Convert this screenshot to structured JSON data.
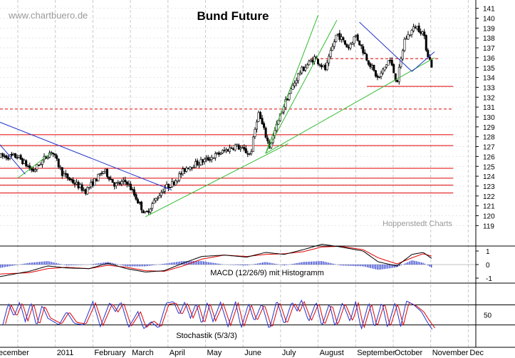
{
  "header": {
    "watermark": "www.chartbuero.de",
    "title": "Bund Future"
  },
  "credit": "Hoppenstedt Charts",
  "colors": {
    "background": "#ffffff",
    "grid": "#c8c8c8",
    "candle": "#000000",
    "support_resistance": "#e00000",
    "trend_green": "#33bb33",
    "trend_blue": "#2233cc",
    "macd_line": "#000000",
    "signal_line": "#e00000",
    "histogram": "#2233cc",
    "stoch_k": "#2233cc",
    "stoch_d": "#e00000"
  },
  "chart_data": [
    {
      "type": "candlestick",
      "title": "Bund Future",
      "ylim": [
        119,
        141
      ],
      "y_ticks": [
        119,
        120,
        121,
        122,
        123,
        124,
        125,
        126,
        127,
        128,
        129,
        130,
        131,
        132,
        133,
        134,
        135,
        136,
        137,
        138,
        139,
        140,
        141
      ],
      "x_months": [
        "ecember",
        "2011",
        "February",
        "March",
        "April",
        "May",
        "June",
        "July",
        "August",
        "September",
        "October",
        "November",
        "Dec"
      ],
      "grid": true,
      "anchors": [
        {
          "m": 0,
          "v": 126.0
        },
        {
          "m": 0.4,
          "v": 124.5
        },
        {
          "m": 0.9,
          "v": 126.6
        },
        {
          "m": 1.2,
          "v": 124.2
        },
        {
          "m": 1.8,
          "v": 122.5
        },
        {
          "m": 2.3,
          "v": 124.6
        },
        {
          "m": 2.6,
          "v": 123.1
        },
        {
          "m": 2.9,
          "v": 123.5
        },
        {
          "m": 3.4,
          "v": 120.1
        },
        {
          "m": 3.6,
          "v": 121.3
        },
        {
          "m": 3.9,
          "v": 122.8
        },
        {
          "m": 4.1,
          "v": 123.2
        },
        {
          "m": 4.5,
          "v": 124.9
        },
        {
          "m": 5.1,
          "v": 125.8
        },
        {
          "m": 5.8,
          "v": 127.1
        },
        {
          "m": 6.2,
          "v": 126.2
        },
        {
          "m": 6.4,
          "v": 130.5
        },
        {
          "m": 6.7,
          "v": 127.0
        },
        {
          "m": 7.1,
          "v": 131.3
        },
        {
          "m": 7.5,
          "v": 134.5
        },
        {
          "m": 7.9,
          "v": 136.0
        },
        {
          "m": 8.2,
          "v": 134.8
        },
        {
          "m": 8.5,
          "v": 138.5
        },
        {
          "m": 8.8,
          "v": 137.0
        },
        {
          "m": 9.0,
          "v": 138.3
        },
        {
          "m": 9.3,
          "v": 135.9
        },
        {
          "m": 9.6,
          "v": 133.8
        },
        {
          "m": 9.9,
          "v": 135.9
        },
        {
          "m": 10.1,
          "v": 133.5
        },
        {
          "m": 10.3,
          "v": 137.8
        },
        {
          "m": 10.6,
          "v": 139.2
        },
        {
          "m": 10.8,
          "v": 138.5
        },
        {
          "m": 10.9,
          "v": 136.6
        },
        {
          "m": 11.05,
          "v": 134.9
        }
      ],
      "horizontal_levels": [
        {
          "value": 135.9,
          "style": "dashed",
          "from_month": 7.8,
          "to_month": 11.2
        },
        {
          "value": 133.1,
          "style": "solid",
          "from_month": 9.3,
          "to_month": 11.6
        },
        {
          "value": 130.8,
          "style": "dashed",
          "from_month": -0.5,
          "to_month": 11.6
        },
        {
          "value": 128.2,
          "style": "solid",
          "from_month": -0.5,
          "to_month": 11.6
        },
        {
          "value": 127.1,
          "style": "solid",
          "from_month": -0.5,
          "to_month": 11.6
        },
        {
          "value": 124.8,
          "style": "solid",
          "from_month": -0.5,
          "to_month": 11.6
        },
        {
          "value": 123.8,
          "style": "solid",
          "from_month": -0.5,
          "to_month": 11.6
        },
        {
          "value": 123.1,
          "style": "solid",
          "from_month": -0.5,
          "to_month": 11.6
        },
        {
          "value": 122.3,
          "style": "solid",
          "from_month": -0.5,
          "to_month": 11.6
        }
      ],
      "trendlines": [
        {
          "color": "green",
          "from": [
            3.4,
            119.9
          ],
          "to": [
            7.2,
            127.3
          ]
        },
        {
          "color": "green",
          "from": [
            6.6,
            126.3
          ],
          "to": [
            11.1,
            136.0
          ]
        },
        {
          "color": "green",
          "from": [
            6.6,
            126.3
          ],
          "to": [
            8.5,
            139.8
          ]
        },
        {
          "color": "green",
          "from": [
            6.6,
            126.3
          ],
          "to": [
            8.0,
            140.3
          ]
        },
        {
          "color": "green",
          "from": [
            0.0,
            123.8
          ],
          "to": [
            0.9,
            126.4
          ]
        },
        {
          "color": "blue",
          "from": [
            -0.5,
            129.5
          ],
          "to": [
            4.1,
            122.6
          ]
        },
        {
          "color": "blue",
          "from": [
            -0.5,
            127.3
          ],
          "to": [
            0.2,
            124.2
          ]
        },
        {
          "color": "blue",
          "from": [
            9.1,
            139.6
          ],
          "to": [
            10.5,
            134.6
          ]
        },
        {
          "color": "blue",
          "from": [
            10.5,
            134.6
          ],
          "to": [
            11.1,
            136.6
          ]
        }
      ]
    },
    {
      "type": "line",
      "title": "MACD (12/26/9) mit Histogramm",
      "ylim": [
        -1.6,
        1.6
      ],
      "y_ticks": [
        -1,
        0,
        1
      ],
      "series": [
        {
          "role": "macd",
          "anchors": [
            {
              "m": -0.5,
              "v": -0.9
            },
            {
              "m": 0.3,
              "v": -0.5
            },
            {
              "m": 0.8,
              "v": -0.1
            },
            {
              "m": 1.3,
              "v": -0.25
            },
            {
              "m": 1.9,
              "v": -0.3
            },
            {
              "m": 2.4,
              "v": 0.1
            },
            {
              "m": 2.9,
              "v": -0.3
            },
            {
              "m": 3.4,
              "v": -0.55
            },
            {
              "m": 3.9,
              "v": -0.45
            },
            {
              "m": 4.4,
              "v": 0.1
            },
            {
              "m": 4.9,
              "v": 0.6
            },
            {
              "m": 5.5,
              "v": 0.7
            },
            {
              "m": 6.1,
              "v": 0.55
            },
            {
              "m": 6.6,
              "v": 0.9
            },
            {
              "m": 7.1,
              "v": 0.75
            },
            {
              "m": 7.6,
              "v": 1.1
            },
            {
              "m": 8.1,
              "v": 1.5
            },
            {
              "m": 8.6,
              "v": 1.3
            },
            {
              "m": 9.2,
              "v": 1.0
            },
            {
              "m": 9.6,
              "v": 0.2
            },
            {
              "m": 10.1,
              "v": -0.1
            },
            {
              "m": 10.5,
              "v": 0.75
            },
            {
              "m": 10.8,
              "v": 0.9
            },
            {
              "m": 11.05,
              "v": 0.4
            }
          ]
        },
        {
          "role": "signal",
          "anchors": [
            {
              "m": -0.5,
              "v": -0.7
            },
            {
              "m": 0.3,
              "v": -0.6
            },
            {
              "m": 0.8,
              "v": -0.3
            },
            {
              "m": 1.3,
              "v": -0.2
            },
            {
              "m": 1.9,
              "v": -0.3
            },
            {
              "m": 2.4,
              "v": -0.05
            },
            {
              "m": 2.9,
              "v": -0.2
            },
            {
              "m": 3.4,
              "v": -0.45
            },
            {
              "m": 3.9,
              "v": -0.5
            },
            {
              "m": 4.4,
              "v": -0.1
            },
            {
              "m": 4.9,
              "v": 0.4
            },
            {
              "m": 5.5,
              "v": 0.7
            },
            {
              "m": 6.1,
              "v": 0.6
            },
            {
              "m": 6.6,
              "v": 0.75
            },
            {
              "m": 7.1,
              "v": 0.8
            },
            {
              "m": 7.6,
              "v": 0.95
            },
            {
              "m": 8.1,
              "v": 1.3
            },
            {
              "m": 8.6,
              "v": 1.35
            },
            {
              "m": 9.2,
              "v": 1.1
            },
            {
              "m": 9.6,
              "v": 0.5
            },
            {
              "m": 10.1,
              "v": 0.05
            },
            {
              "m": 10.5,
              "v": 0.5
            },
            {
              "m": 10.8,
              "v": 0.8
            },
            {
              "m": 11.05,
              "v": 0.6
            }
          ]
        }
      ]
    },
    {
      "type": "line",
      "title": "Stochastik (5/3/3)",
      "ylim": [
        0,
        100
      ],
      "y_ticks": [
        50
      ],
      "reference_lines": [
        20,
        80
      ],
      "k_anchors": [
        {
          "m": -0.4,
          "v": 20
        },
        {
          "m": -0.25,
          "v": 85
        },
        {
          "m": -0.1,
          "v": 45
        },
        {
          "m": 0.05,
          "v": 90
        },
        {
          "m": 0.2,
          "v": 30
        },
        {
          "m": 0.35,
          "v": 88
        },
        {
          "m": 0.5,
          "v": 15
        },
        {
          "m": 0.65,
          "v": 80
        },
        {
          "m": 0.8,
          "v": 40
        },
        {
          "m": 0.95,
          "v": 30
        },
        {
          "m": 1.1,
          "v": 20
        },
        {
          "m": 1.3,
          "v": 60
        },
        {
          "m": 1.5,
          "v": 25
        },
        {
          "m": 1.75,
          "v": 20
        },
        {
          "m": 2.0,
          "v": 90
        },
        {
          "m": 2.2,
          "v": 15
        },
        {
          "m": 2.45,
          "v": 88
        },
        {
          "m": 2.6,
          "v": 60
        },
        {
          "m": 2.75,
          "v": 90
        },
        {
          "m": 2.95,
          "v": 12
        },
        {
          "m": 3.2,
          "v": 60
        },
        {
          "m": 3.35,
          "v": 8
        },
        {
          "m": 3.55,
          "v": 30
        },
        {
          "m": 3.75,
          "v": 10
        },
        {
          "m": 3.95,
          "v": 85
        },
        {
          "m": 4.15,
          "v": 90
        },
        {
          "m": 4.3,
          "v": 50
        },
        {
          "m": 4.45,
          "v": 90
        },
        {
          "m": 4.6,
          "v": 40
        },
        {
          "m": 4.75,
          "v": 85
        },
        {
          "m": 4.9,
          "v": 20
        },
        {
          "m": 5.05,
          "v": 90
        },
        {
          "m": 5.2,
          "v": 30
        },
        {
          "m": 5.4,
          "v": 88
        },
        {
          "m": 5.6,
          "v": 15
        },
        {
          "m": 5.8,
          "v": 90
        },
        {
          "m": 5.95,
          "v": 10
        },
        {
          "m": 6.15,
          "v": 85
        },
        {
          "m": 6.3,
          "v": 30
        },
        {
          "m": 6.5,
          "v": 85
        },
        {
          "m": 6.7,
          "v": 5
        },
        {
          "m": 6.9,
          "v": 95
        },
        {
          "m": 7.1,
          "v": 20
        },
        {
          "m": 7.3,
          "v": 90
        },
        {
          "m": 7.45,
          "v": 60
        },
        {
          "m": 7.55,
          "v": 97
        },
        {
          "m": 7.75,
          "v": 30
        },
        {
          "m": 7.95,
          "v": 90
        },
        {
          "m": 8.1,
          "v": 15
        },
        {
          "m": 8.3,
          "v": 85
        },
        {
          "m": 8.45,
          "v": 15
        },
        {
          "m": 8.65,
          "v": 88
        },
        {
          "m": 8.85,
          "v": 30
        },
        {
          "m": 9.0,
          "v": 90
        },
        {
          "m": 9.15,
          "v": 5
        },
        {
          "m": 9.35,
          "v": 88
        },
        {
          "m": 9.5,
          "v": 10
        },
        {
          "m": 9.7,
          "v": 90
        },
        {
          "m": 9.85,
          "v": 10
        },
        {
          "m": 10.05,
          "v": 88
        },
        {
          "m": 10.2,
          "v": 15
        },
        {
          "m": 10.35,
          "v": 92
        },
        {
          "m": 10.55,
          "v": 80
        },
        {
          "m": 10.75,
          "v": 60
        },
        {
          "m": 10.9,
          "v": 30
        },
        {
          "m": 11.05,
          "v": 5
        }
      ]
    }
  ]
}
